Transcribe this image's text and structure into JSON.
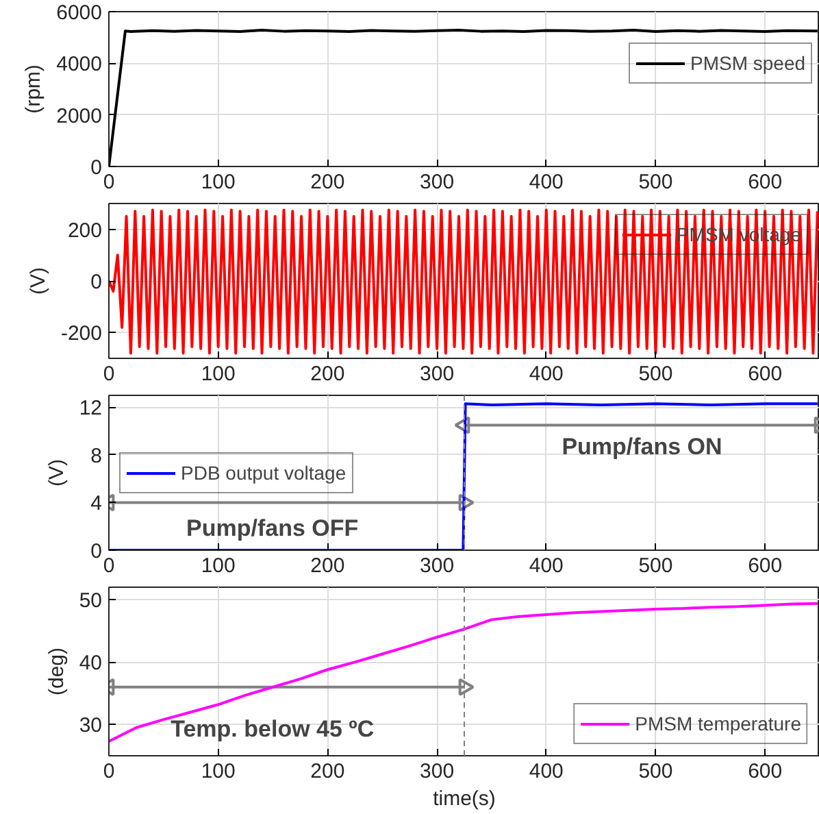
{
  "chart_data": [
    {
      "type": "line",
      "ylabel": "(rpm)",
      "xlim": [
        0,
        650
      ],
      "xticks": [
        0,
        100,
        200,
        300,
        400,
        500,
        600
      ],
      "ylim": [
        0,
        6000
      ],
      "yticks": [
        0,
        2000,
        4000,
        6000
      ],
      "grid": true,
      "legend": "top right",
      "series": [
        {
          "name": "PMSM speed",
          "color": "#000000",
          "x": [
            0,
            15,
            20,
            40,
            60,
            80,
            100,
            120,
            140,
            160,
            180,
            200,
            220,
            240,
            260,
            280,
            300,
            320,
            340,
            360,
            380,
            400,
            420,
            440,
            460,
            480,
            500,
            520,
            540,
            560,
            580,
            600,
            620,
            648
          ],
          "values": [
            0,
            5250,
            5230,
            5260,
            5240,
            5270,
            5250,
            5230,
            5280,
            5240,
            5260,
            5250,
            5230,
            5270,
            5250,
            5240,
            5260,
            5280,
            5240,
            5250,
            5230,
            5270,
            5260,
            5240,
            5250,
            5280,
            5230,
            5260,
            5240,
            5270,
            5250,
            5230,
            5260,
            5250
          ]
        }
      ]
    },
    {
      "type": "line",
      "ylabel": "(V)",
      "xlim": [
        0,
        650
      ],
      "xticks": [
        0,
        100,
        200,
        300,
        400,
        500,
        600
      ],
      "ylim": [
        -300,
        300
      ],
      "yticks": [
        -200,
        0,
        200
      ],
      "grid": true,
      "legend": "top right",
      "series": [
        {
          "name": "PMSM voltage",
          "color": "#ff0000",
          "x": [
            0,
            4,
            8,
            12,
            16,
            20,
            24,
            28,
            32,
            36,
            40,
            44,
            48,
            52,
            56,
            60,
            64,
            68,
            72,
            76,
            80,
            84,
            88,
            92,
            96,
            100,
            104,
            108,
            112,
            116,
            120,
            124,
            128,
            132,
            136,
            140,
            144,
            148,
            152,
            156,
            160,
            164,
            168,
            172,
            176,
            180,
            184,
            188,
            192,
            196,
            200,
            204,
            208,
            212,
            216,
            220,
            224,
            228,
            232,
            236,
            240,
            244,
            248,
            252,
            256,
            260,
            264,
            268,
            272,
            276,
            280,
            284,
            288,
            292,
            296,
            300,
            304,
            308,
            312,
            316,
            320,
            324,
            328,
            332,
            336,
            340,
            344,
            348,
            352,
            356,
            360,
            364,
            368,
            372,
            376,
            380,
            384,
            388,
            392,
            396,
            400,
            404,
            408,
            412,
            416,
            420,
            424,
            428,
            432,
            436,
            440,
            444,
            448,
            452,
            456,
            460,
            464,
            468,
            472,
            476,
            480,
            484,
            488,
            492,
            496,
            500,
            504,
            508,
            512,
            516,
            520,
            524,
            528,
            532,
            536,
            540,
            544,
            548,
            552,
            556,
            560,
            564,
            568,
            572,
            576,
            580,
            584,
            588,
            592,
            596,
            600,
            604,
            608,
            612,
            616,
            620,
            624,
            628,
            632,
            636,
            640,
            644,
            648
          ],
          "values": [
            0,
            -40,
            100,
            -180,
            250,
            -280,
            270,
            -255,
            250,
            -262,
            275,
            -280,
            270,
            -255,
            250,
            -262,
            275,
            -280,
            270,
            -255,
            250,
            -262,
            275,
            -280,
            270,
            -255,
            250,
            -262,
            275,
            -280,
            270,
            -255,
            250,
            -262,
            275,
            -280,
            270,
            -255,
            250,
            -262,
            275,
            -280,
            270,
            -255,
            250,
            -262,
            275,
            -280,
            270,
            -255,
            250,
            -262,
            275,
            -280,
            270,
            -255,
            250,
            -262,
            275,
            -280,
            270,
            -255,
            250,
            -262,
            275,
            -280,
            270,
            -255,
            250,
            -262,
            275,
            -280,
            270,
            -255,
            250,
            -262,
            275,
            -280,
            270,
            -255,
            250,
            -262,
            275,
            -280,
            270,
            -255,
            250,
            -262,
            275,
            -280,
            270,
            -255,
            250,
            -262,
            275,
            -280,
            270,
            -255,
            250,
            -262,
            275,
            -280,
            270,
            -255,
            250,
            -262,
            275,
            -280,
            270,
            -255,
            250,
            -262,
            275,
            -280,
            270,
            -255,
            250,
            -262,
            275,
            -280,
            270,
            -255,
            250,
            -262,
            275,
            -280,
            270,
            -255,
            250,
            -262,
            275,
            -280,
            270,
            -255,
            250,
            -262,
            275,
            -280,
            270,
            -255,
            250,
            -262,
            275,
            -280,
            270,
            -255,
            250,
            -262,
            275,
            -280,
            270,
            -255,
            250,
            -262,
            275,
            -280,
            270,
            -255,
            250,
            -262,
            275,
            -280,
            270
          ]
        }
      ]
    },
    {
      "type": "line",
      "ylabel": "(V)",
      "xlim": [
        0,
        650
      ],
      "xticks": [
        0,
        100,
        200,
        300,
        400,
        500,
        600
      ],
      "ylim": [
        0,
        13
      ],
      "yticks": [
        0,
        4,
        8,
        12
      ],
      "grid": true,
      "legend": "left",
      "ref_lines": [
        {
          "axis": "x",
          "value": 325,
          "color": "#808080",
          "line_style": "dashed"
        }
      ],
      "annotations": [
        "Pump/fans OFF",
        "Pump/fans ON"
      ],
      "series": [
        {
          "type": "line",
          "color": "#808080",
          "marker": "triangle",
          "x": [
            0,
            325
          ],
          "values": [
            4,
            4
          ]
        },
        {
          "type": "line",
          "color": "#808080",
          "marker": "triangle",
          "x": [
            325,
            650
          ],
          "values": [
            10.5,
            10.5
          ]
        },
        {
          "name": "PDB output voltage",
          "color": "#0000ff",
          "x": [
            0,
            100,
            200,
            300,
            324,
            326,
            350,
            400,
            450,
            500,
            550,
            600,
            648
          ],
          "values": [
            0,
            0,
            0,
            0,
            0,
            12.3,
            12.2,
            12.3,
            12.2,
            12.3,
            12.2,
            12.3,
            12.3
          ]
        }
      ]
    },
    {
      "type": "line",
      "xlabel": "time(s)",
      "ylabel": "(deg)",
      "xlim": [
        0,
        650
      ],
      "xticks": [
        0,
        100,
        200,
        300,
        400,
        500,
        600
      ],
      "ylim": [
        25,
        52
      ],
      "yticks": [
        30,
        40,
        50
      ],
      "grid": true,
      "legend": "bottom right",
      "ref_lines": [
        {
          "axis": "x",
          "value": 325,
          "color": "#808080",
          "line_style": "dashed"
        }
      ],
      "annotations": [
        "Temp. below 45 ºC"
      ],
      "series": [
        {
          "type": "line",
          "color": "#808080",
          "marker": "triangle",
          "x": [
            0,
            325
          ],
          "values": [
            36,
            36
          ]
        },
        {
          "name": "PMSM temperature",
          "color": "#ff00ff",
          "x": [
            0,
            25,
            50,
            75,
            100,
            125,
            150,
            175,
            200,
            225,
            250,
            275,
            300,
            325,
            350,
            375,
            400,
            425,
            450,
            475,
            500,
            525,
            550,
            575,
            600,
            625,
            648
          ],
          "values": [
            27.3,
            29.5,
            30.8,
            32,
            33.2,
            34.7,
            36,
            37.3,
            38.8,
            40,
            41.3,
            42.6,
            44,
            45.3,
            46.8,
            47.3,
            47.6,
            47.9,
            48.1,
            48.3,
            48.5,
            48.6,
            48.8,
            48.9,
            49.1,
            49.3,
            49.4
          ]
        }
      ]
    }
  ]
}
